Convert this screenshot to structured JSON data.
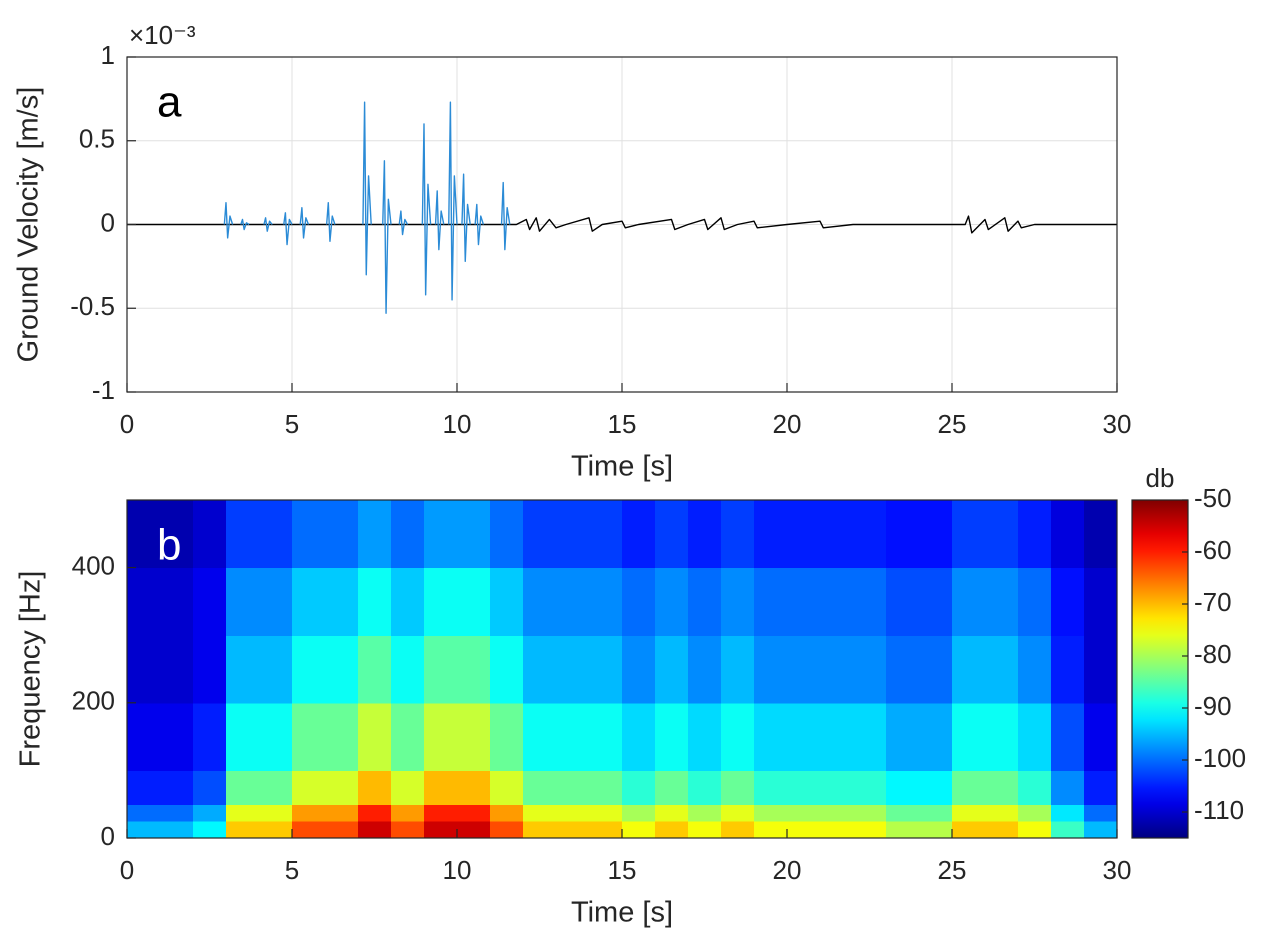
{
  "chart_data": [
    {
      "type": "line",
      "xlabel": "Time [s]",
      "ylabel": "Ground Velocity [m/s]",
      "exponent_label": "×10⁻³",
      "annotation": "a",
      "xlim": [
        0,
        30
      ],
      "ylim": [
        -1,
        1
      ],
      "xticks": [
        0,
        5,
        10,
        15,
        20,
        25,
        30
      ],
      "yticks": [
        -1,
        -0.5,
        0,
        0.5,
        1
      ],
      "grid": true,
      "series": [
        {
          "color": "#000000",
          "x": [
            0,
            11.8,
            12.1,
            12.2,
            12.4,
            12.5,
            12.8,
            13,
            13.3,
            14,
            14.1,
            14.4,
            15,
            15.1,
            15.5,
            16.5,
            16.6,
            17,
            17.5,
            17.6,
            18,
            18.1,
            18.5,
            19,
            19.1,
            20,
            21,
            21.1,
            22,
            25.4,
            25.5,
            25.6,
            26,
            26.1,
            26.6,
            26.7,
            27,
            27.1,
            27.5,
            30
          ],
          "values": [
            0,
            0,
            0.03,
            -0.03,
            0.04,
            -0.04,
            0.03,
            -0.02,
            0,
            0.04,
            -0.04,
            0,
            0.02,
            -0.02,
            0,
            0.03,
            -0.03,
            0,
            0.03,
            -0.03,
            0.04,
            -0.03,
            0,
            0.02,
            -0.02,
            0,
            0.02,
            -0.02,
            0,
            0,
            0.05,
            -0.05,
            0.03,
            -0.03,
            0.04,
            -0.04,
            0.02,
            -0.02,
            0,
            0
          ]
        },
        {
          "color": "#2b8bd6",
          "x": [
            2.95,
            3,
            3.05,
            3.12,
            3.2,
            3.25,
            3.45,
            3.5,
            3.55,
            3.62,
            3.7,
            3.75,
            4.15,
            4.2,
            4.25,
            4.32,
            4.4,
            4.45,
            4.75,
            4.8,
            4.85,
            4.92,
            5,
            5.05,
            5.25,
            5.3,
            5.35,
            5.42,
            5.5,
            5.55,
            6.05,
            6.1,
            6.15,
            6.22,
            6.3,
            6.35,
            7.15,
            7.2,
            7.25,
            7.32,
            7.4,
            7.45,
            7.75,
            7.8,
            7.85,
            7.92,
            8,
            8.05,
            8.25,
            8.3,
            8.35,
            8.42,
            8.5,
            8.55,
            8.95,
            9,
            9.05,
            9.12,
            9.2,
            9.25,
            9.35,
            9.4,
            9.45,
            9.52,
            9.6,
            9.65,
            9.75,
            9.8,
            9.85,
            9.92,
            10,
            10.05,
            10.15,
            10.2,
            10.25,
            10.32,
            10.4,
            10.45,
            10.55,
            10.6,
            10.65,
            10.72,
            10.8,
            10.85,
            11.35,
            11.4,
            11.45,
            11.52,
            11.6
          ],
          "values": [
            0,
            0.13,
            -0.08,
            0.05,
            0,
            null,
            0,
            0.03,
            -0.03,
            0.01,
            0,
            null,
            0,
            0.04,
            -0.04,
            0.02,
            0,
            null,
            0,
            0.07,
            -0.12,
            0.03,
            0,
            null,
            0,
            0.1,
            -0.08,
            0.04,
            0,
            null,
            0,
            0.13,
            -0.1,
            0.05,
            0,
            null,
            0,
            0.73,
            -0.3,
            0.29,
            0,
            null,
            0,
            0.38,
            -0.53,
            0.15,
            0,
            null,
            0,
            0.08,
            -0.06,
            0.03,
            0,
            null,
            0,
            0.6,
            -0.42,
            0.24,
            0,
            null,
            0,
            0.2,
            -0.15,
            0.08,
            0,
            null,
            0,
            0.73,
            -0.45,
            0.29,
            0,
            null,
            0,
            0.3,
            -0.22,
            0.12,
            0,
            null,
            0,
            0.12,
            -0.12,
            0.05,
            0,
            null,
            0,
            0.25,
            -0.15,
            0.1,
            0
          ]
        }
      ]
    },
    {
      "type": "heatmap",
      "xlabel": "Time [s]",
      "ylabel": "Frequency [Hz]",
      "annotation": "b",
      "xlim": [
        0,
        30
      ],
      "ylim": [
        0,
        500
      ],
      "xticks": [
        0,
        5,
        10,
        15,
        20,
        25,
        30
      ],
      "yticks": [
        0,
        200,
        400
      ],
      "x_bins": [
        0,
        1,
        2,
        3,
        4,
        5,
        6,
        7,
        8,
        9,
        10,
        11,
        12,
        13,
        14,
        15,
        16,
        17,
        18,
        19,
        20,
        21,
        22,
        23,
        24,
        25,
        26,
        27,
        28,
        29,
        30
      ],
      "y_bins": [
        0,
        25,
        50,
        100,
        200,
        300,
        400,
        500
      ],
      "z": [
        [
          -95,
          -95,
          -91,
          -71,
          -71,
          -63,
          -63,
          -55,
          -63,
          -55,
          -55,
          -63,
          -71,
          -71,
          -71,
          -75,
          -71,
          -75,
          -71,
          -75,
          -75,
          -75,
          -75,
          -79,
          -79,
          -71,
          -71,
          -75,
          -87,
          -95
        ],
        [
          -100,
          -100,
          -96,
          -76,
          -76,
          -68,
          -68,
          -60,
          -68,
          -60,
          -60,
          -68,
          -76,
          -76,
          -76,
          -80,
          -76,
          -80,
          -76,
          -80,
          -80,
          -80,
          -80,
          -84,
          -84,
          -76,
          -76,
          -80,
          -92,
          -100
        ],
        [
          -105,
          -105,
          -102,
          -84,
          -84,
          -77,
          -77,
          -70,
          -77,
          -70,
          -70,
          -77,
          -84,
          -84,
          -84,
          -88,
          -84,
          -88,
          -84,
          -88,
          -88,
          -88,
          -88,
          -91,
          -91,
          -84,
          -84,
          -88,
          -98,
          -105
        ],
        [
          -108,
          -108,
          -105,
          -90,
          -90,
          -84,
          -84,
          -78,
          -84,
          -78,
          -78,
          -84,
          -90,
          -90,
          -90,
          -93,
          -90,
          -93,
          -90,
          -93,
          -93,
          -93,
          -93,
          -96,
          -96,
          -90,
          -90,
          -93,
          -102,
          -108
        ],
        [
          -110,
          -110,
          -108,
          -95,
          -95,
          -90,
          -90,
          -85,
          -90,
          -85,
          -85,
          -90,
          -95,
          -95,
          -95,
          -98,
          -95,
          -98,
          -95,
          -98,
          -98,
          -98,
          -98,
          -100,
          -100,
          -95,
          -95,
          -98,
          -105,
          -110
        ],
        [
          -110,
          -110,
          -108,
          -98,
          -98,
          -94,
          -94,
          -90,
          -94,
          -90,
          -90,
          -94,
          -98,
          -98,
          -98,
          -100,
          -98,
          -100,
          -98,
          -100,
          -100,
          -100,
          -100,
          -102,
          -102,
          -98,
          -98,
          -100,
          -106,
          -110
        ],
        [
          -112,
          -112,
          -110,
          -103,
          -103,
          -100,
          -100,
          -97,
          -100,
          -97,
          -97,
          -100,
          -103,
          -103,
          -103,
          -105,
          -103,
          -105,
          -103,
          -105,
          -105,
          -105,
          -105,
          -106,
          -106,
          -103,
          -103,
          -105,
          -109,
          -112
        ]
      ],
      "colormap": "jet",
      "clim": [
        -115,
        -50
      ],
      "colorbar_label": "db",
      "colorbar_ticks": [
        -110,
        -100,
        -90,
        -80,
        -70,
        -60,
        -50
      ]
    }
  ]
}
